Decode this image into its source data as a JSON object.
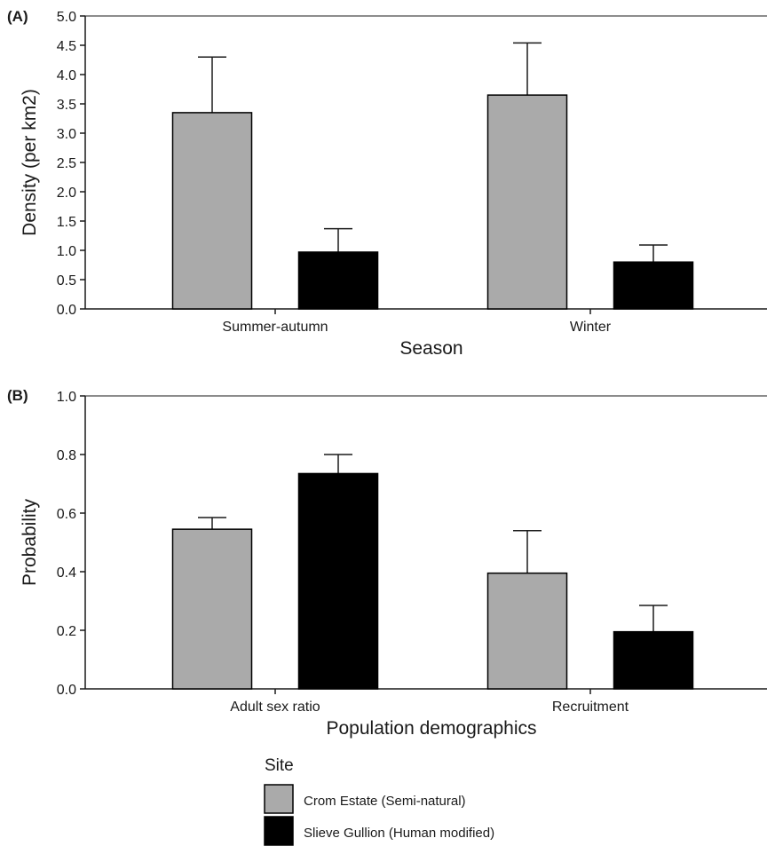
{
  "colors": {
    "crom": "#aaaaaa",
    "slieve": "#000000",
    "axis": "#1a1a1a"
  },
  "chart_data": [
    {
      "type": "bar",
      "panel": "(A)",
      "xlabel": "Season",
      "ylabel": "Density (per km2)",
      "ylim": [
        0,
        5
      ],
      "yticks": [
        "0.0",
        "0.5",
        "1.0",
        "1.5",
        "2.0",
        "2.5",
        "3.0",
        "3.5",
        "4.0",
        "4.5",
        "5.0"
      ],
      "categories": [
        "Summer-autumn",
        "Winter"
      ],
      "series": [
        {
          "name": "Crom Estate (Semi-natural)",
          "values": [
            3.35,
            3.65
          ],
          "error_upper": [
            4.3,
            4.54
          ]
        },
        {
          "name": "Slieve Gullion (Human modified)",
          "values": [
            0.97,
            0.8
          ],
          "error_upper": [
            1.37,
            1.09
          ]
        }
      ]
    },
    {
      "type": "bar",
      "panel": "(B)",
      "xlabel": "Population demographics",
      "ylabel": "Probability",
      "ylim": [
        0,
        1
      ],
      "yticks": [
        "0.0",
        "0.2",
        "0.4",
        "0.6",
        "0.8",
        "1.0"
      ],
      "categories": [
        "Adult sex ratio",
        "Recruitment"
      ],
      "series": [
        {
          "name": "Crom Estate (Semi-natural)",
          "values": [
            0.545,
            0.395
          ],
          "error_upper": [
            0.585,
            0.54
          ]
        },
        {
          "name": "Slieve Gullion (Human modified)",
          "values": [
            0.735,
            0.195
          ],
          "error_upper": [
            0.8,
            0.285
          ]
        }
      ]
    }
  ],
  "legend": {
    "title": "Site",
    "items": [
      {
        "label": "Crom Estate (Semi-natural)"
      },
      {
        "label": "Slieve Gullion (Human modified)"
      }
    ]
  }
}
